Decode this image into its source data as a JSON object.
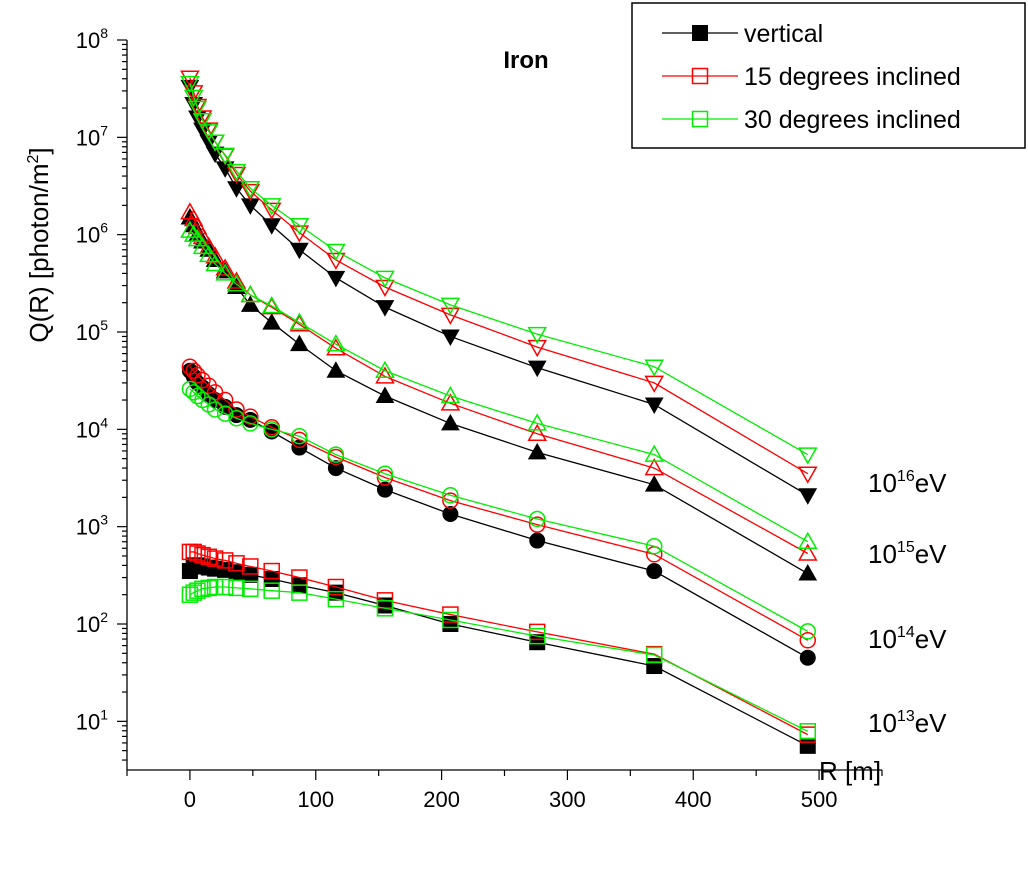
{
  "colors": {
    "vertical": "#000000",
    "inclined15": "#ff0000",
    "inclined30": "#00ee00"
  },
  "chart_data": {
    "type": "scatter",
    "title": "Iron",
    "xlabel": "R [m]",
    "ylabel_main": "Q(R) [photon/m",
    "ylabel_sup": "2",
    "ylabel_close": "]",
    "xlim": [
      -50,
      550
    ],
    "ylog": true,
    "ylim_exp": [
      0.5,
      8
    ],
    "xticks": [
      0,
      100,
      200,
      300,
      400,
      500
    ],
    "xtick_labels": [
      "0",
      "100",
      "200",
      "300",
      "400",
      "500"
    ],
    "yticks_exp": [
      1,
      2,
      3,
      4,
      5,
      6,
      7,
      8
    ],
    "ytick_base": "10",
    "legend_position": "top-right",
    "legend": [
      {
        "label": "vertical",
        "color_key": "vertical",
        "marker": "square",
        "filled": true
      },
      {
        "label": "15 degrees inclined",
        "color_key": "inclined15",
        "marker": "square",
        "filled": false
      },
      {
        "label": "30 degrees inclined",
        "color_key": "inclined30",
        "marker": "square",
        "filled": false
      }
    ],
    "annotations": [
      {
        "base": "10",
        "exp": "16",
        "unit": "eV"
      },
      {
        "base": "10",
        "exp": "15",
        "unit": "eV"
      },
      {
        "base": "10",
        "exp": "14",
        "unit": "eV"
      },
      {
        "base": "10",
        "exp": "13",
        "unit": "eV"
      }
    ],
    "x": [
      0,
      3,
      6,
      10,
      15,
      20,
      28,
      37,
      48,
      65,
      87,
      116,
      155,
      207,
      276,
      369,
      491
    ],
    "groups": [
      {
        "energy": "10^16 eV",
        "marker": "triangle-down",
        "series": [
          {
            "color_key": "vertical",
            "filled": true,
            "values": [
              33000000.0,
              22000000.0,
              16000000.0,
              12000000.0,
              9000000.0,
              6800000.0,
              4800000.0,
              3000000.0,
              2000000.0,
              1250000.0,
              700000.0,
              360000.0,
              180000.0,
              90000.0,
              43000.0,
              18000.0,
              2100.0
            ]
          },
          {
            "color_key": "inclined15",
            "filled": false,
            "values": [
              41000000.0,
              29000000.0,
              21000000.0,
              16000000.0,
              12000000.0,
              9000000.0,
              6500000.0,
              4200000.0,
              2800000.0,
              1800000.0,
              1050000.0,
              550000.0,
              290000.0,
              150000.0,
              70000.0,
              30000.0,
              3500.0
            ]
          },
          {
            "color_key": "inclined30",
            "filled": false,
            "values": [
              36000000.0,
              26000000.0,
              20000000.0,
              15000000.0,
              11500000.0,
              9000000.0,
              6600000.0,
              4500000.0,
              3000000.0,
              2000000.0,
              1250000.0,
              680000.0,
              360000.0,
              190000.0,
              95000.0,
              44000.0,
              5500.0
            ]
          }
        ]
      },
      {
        "energy": "10^15 eV",
        "marker": "triangle-up",
        "series": [
          {
            "color_key": "vertical",
            "filled": true,
            "values": [
              1500000.0,
              1250000.0,
              1000000.0,
              850000.0,
              700000.0,
              550000.0,
              420000.0,
              290000.0,
              190000.0,
              125000.0,
              75000.0,
              40000.0,
              22000.0,
              11500.0,
              5800.0,
              2700.0,
              330.0
            ]
          },
          {
            "color_key": "inclined15",
            "filled": false,
            "values": [
              1700000.0,
              1450000.0,
              1200000.0,
              950000.0,
              750000.0,
              600000.0,
              450000.0,
              330000.0,
              240000.0,
              180000.0,
              120000.0,
              68000.0,
              35000.0,
              18500.0,
              9000.0,
              4000.0,
              530.0
            ]
          },
          {
            "color_key": "inclined30",
            "filled": false,
            "values": [
              1100000.0,
              1000000.0,
              900000.0,
              750000.0,
              620000.0,
              500000.0,
              400000.0,
              310000.0,
              240000.0,
              185000.0,
              125000.0,
              75000.0,
              40000.0,
              22000.0,
              11500.0,
              5500.0,
              700.0
            ]
          }
        ]
      },
      {
        "energy": "10^14 eV",
        "marker": "circle",
        "series": [
          {
            "color_key": "vertical",
            "filled": true,
            "values": [
              40000.0,
              35000.0,
              30000.0,
              27000.0,
              23000.0,
              20000.0,
              17000.0,
              14000.0,
              12500.0,
              9500.0,
              6500.0,
              4000.0,
              2400.0,
              1350.0,
              720.0,
              350.0,
              45
            ]
          },
          {
            "color_key": "inclined15",
            "filled": false,
            "values": [
              44000.0,
              40000.0,
              36000.0,
              32000.0,
              28000.0,
              24000.0,
              20000.0,
              16000.0,
              13500.0,
              10500.0,
              7800.0,
              5200.0,
              3200.0,
              1850.0,
              1050.0,
              520.0,
              68
            ]
          },
          {
            "color_key": "inclined30",
            "filled": false,
            "values": [
              26000.0,
              24000.0,
              22000.0,
              20000.0,
              18000.0,
              16000.0,
              14500.0,
              13000.0,
              11500.0,
              10000.0,
              8500.0,
              5500.0,
              3500.0,
              2100.0,
              1200.0,
              630.0,
              84
            ]
          }
        ]
      },
      {
        "energy": "10^13 eV",
        "marker": "square",
        "series": [
          {
            "color_key": "vertical",
            "filled": true,
            "values": [
              350.0,
              400.0,
              400.0,
              390.0,
              380.0,
              370.0,
              360.0,
              340.0,
              320.0,
              290.0,
              250.0,
              210.0,
              155.0,
              100.0,
              65,
              37,
              5.6
            ]
          },
          {
            "color_key": "inclined15",
            "filled": false,
            "values": [
              550.0,
              550.0,
              530.0,
              510.0,
              490.0,
              470.0,
              450.0,
              420.0,
              390.0,
              350.0,
              300.0,
              240.0,
              175.0,
              125.0,
              83,
              49,
              7.3
            ]
          },
          {
            "color_key": "inclined30",
            "filled": false,
            "values": [
              200.0,
              210.0,
              220.0,
              230.0,
              235.0,
              240.0,
              240.0,
              235.0,
              230.0,
              220.0,
              210.0,
              180.0,
              145.0,
              110.0,
              75,
              48,
              7.9
            ]
          }
        ]
      }
    ]
  }
}
